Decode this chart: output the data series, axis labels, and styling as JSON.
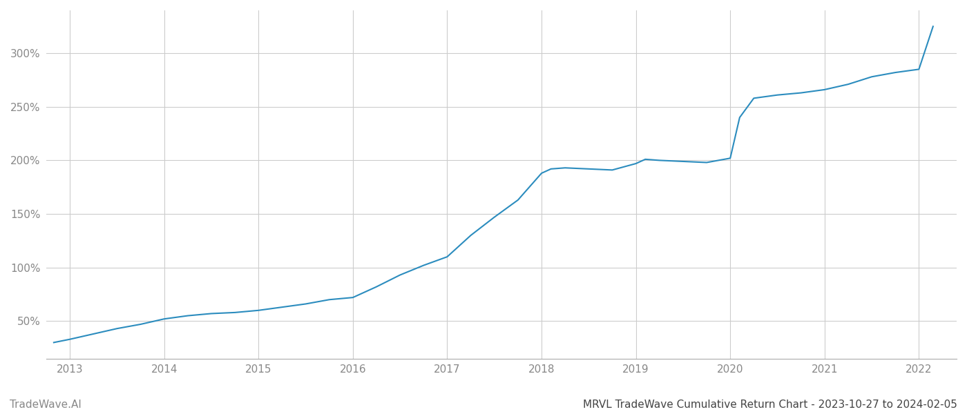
{
  "title": "MRVL TradeWave Cumulative Return Chart - 2023-10-27 to 2024-02-05",
  "watermark": "TradeWave.AI",
  "line_color": "#2b8cbe",
  "background_color": "#ffffff",
  "grid_color": "#cccccc",
  "x_years": [
    2013,
    2014,
    2015,
    2016,
    2017,
    2018,
    2019,
    2020,
    2021,
    2022
  ],
  "y_ticks": [
    50,
    100,
    150,
    200,
    250,
    300
  ],
  "data_x": [
    2012.83,
    2013.0,
    2013.25,
    2013.5,
    2013.75,
    2014.0,
    2014.25,
    2014.5,
    2014.75,
    2015.0,
    2015.25,
    2015.5,
    2015.75,
    2016.0,
    2016.25,
    2016.5,
    2016.75,
    2017.0,
    2017.25,
    2017.5,
    2017.75,
    2018.0,
    2018.1,
    2018.25,
    2018.5,
    2018.75,
    2019.0,
    2019.1,
    2019.25,
    2019.5,
    2019.75,
    2020.0,
    2020.1,
    2020.25,
    2020.5,
    2020.75,
    2021.0,
    2021.25,
    2021.5,
    2021.75,
    2022.0,
    2022.15
  ],
  "data_y": [
    30,
    33,
    38,
    43,
    47,
    52,
    55,
    57,
    58,
    60,
    63,
    66,
    70,
    72,
    82,
    93,
    102,
    110,
    130,
    147,
    163,
    188,
    192,
    193,
    192,
    191,
    197,
    201,
    200,
    199,
    198,
    202,
    240,
    258,
    261,
    263,
    266,
    271,
    278,
    282,
    285,
    325
  ],
  "xlim": [
    2012.75,
    2022.4
  ],
  "ylim": [
    15,
    340
  ],
  "line_width": 1.5,
  "title_fontsize": 11,
  "watermark_fontsize": 11,
  "tick_fontsize": 11,
  "tick_color": "#888888",
  "title_color": "#444444",
  "watermark_color": "#888888"
}
